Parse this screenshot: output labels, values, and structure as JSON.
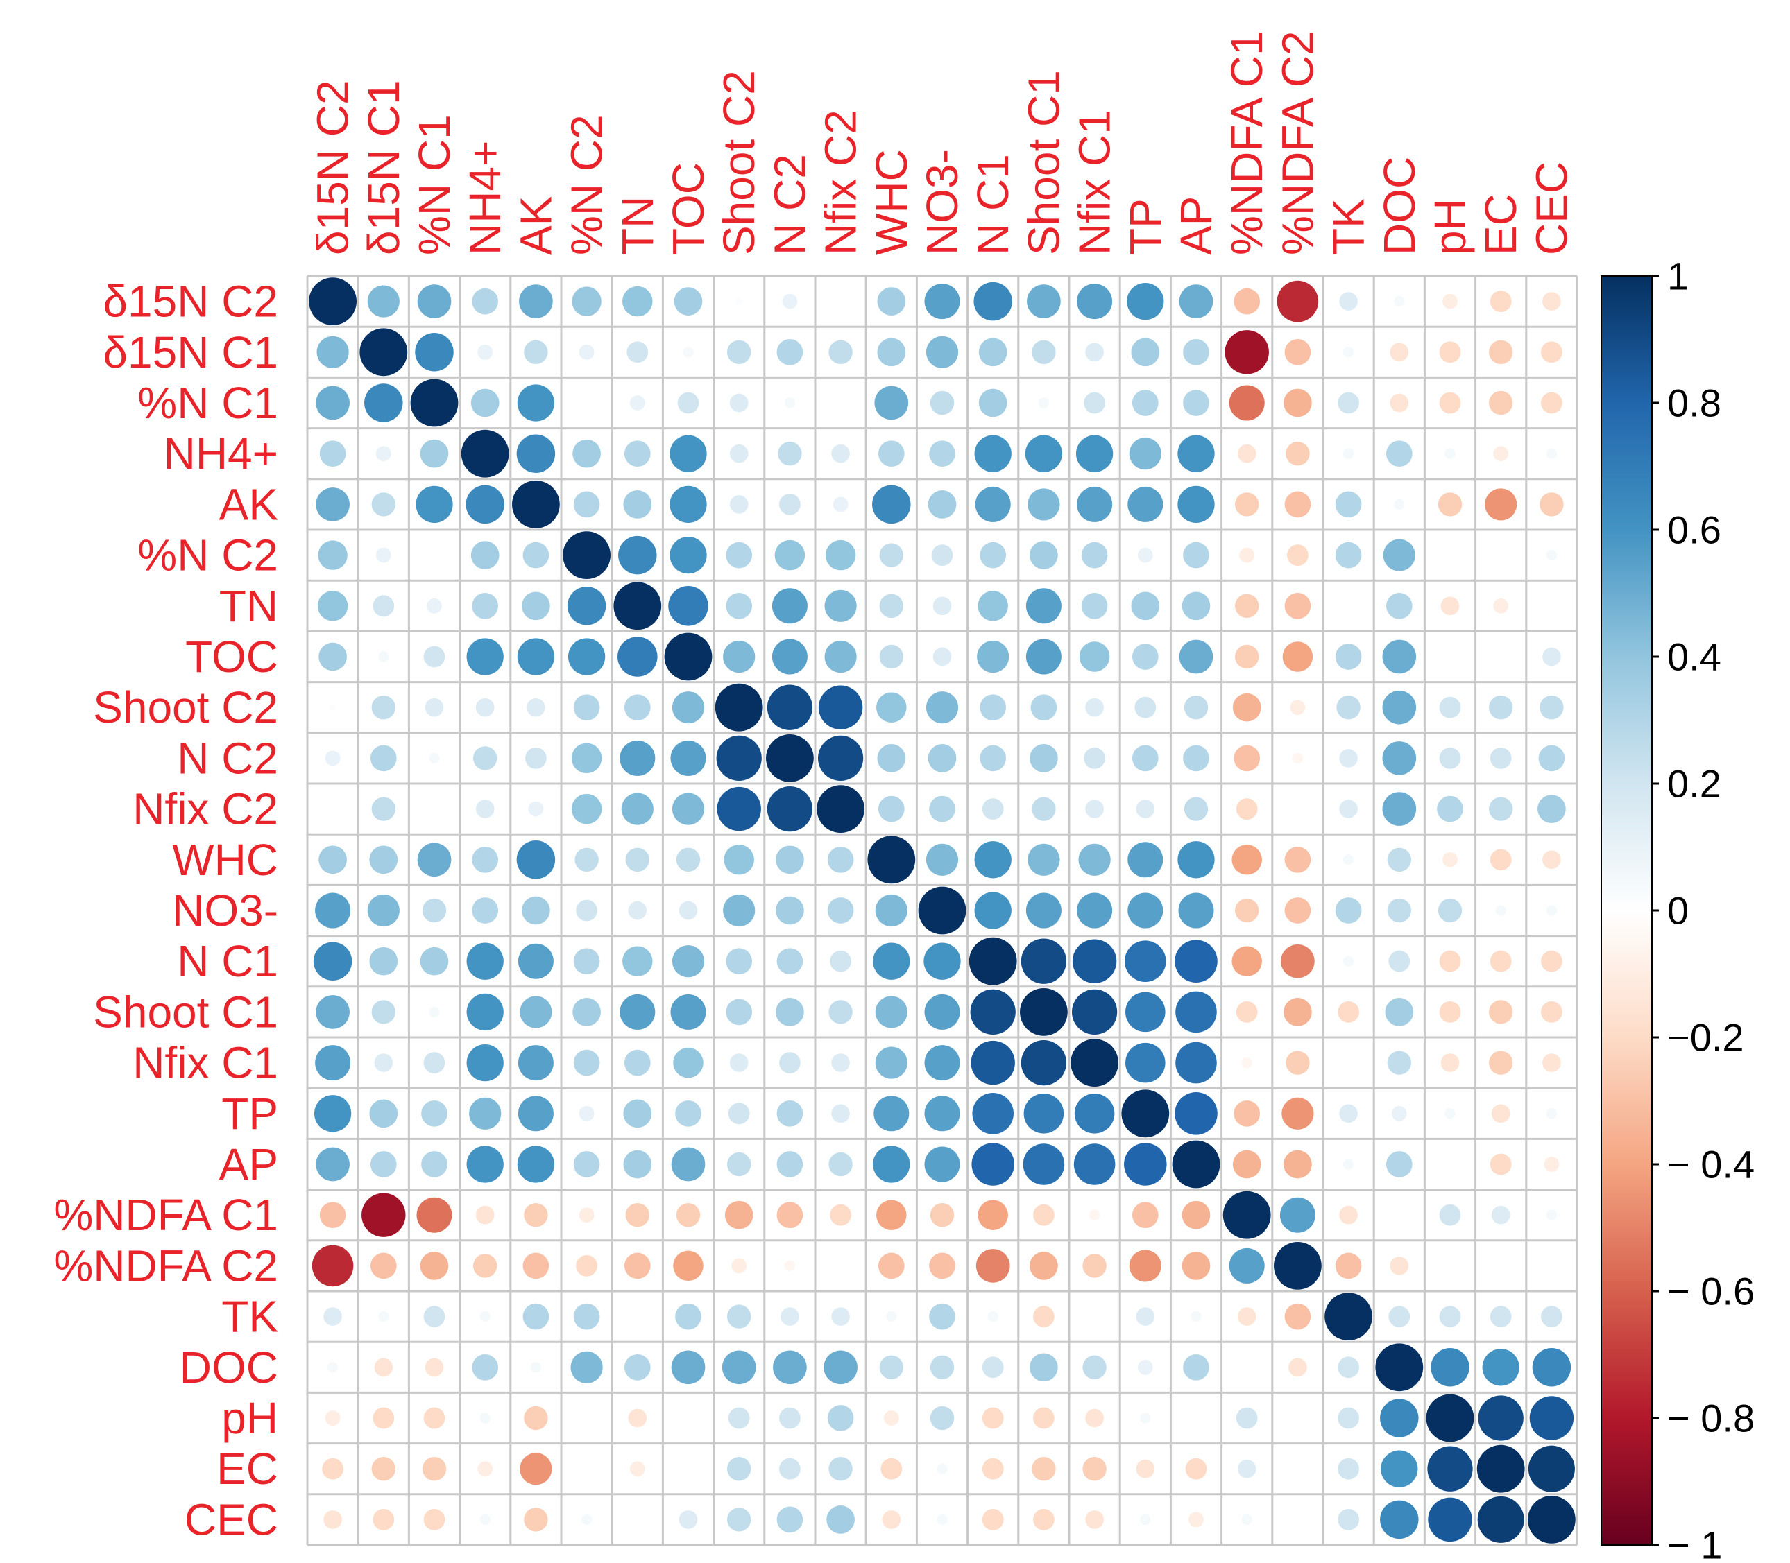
{
  "chart_data": {
    "type": "heatmap",
    "subtype": "correlation-circle-matrix",
    "variables": [
      "δ15N C2",
      "δ15N C1",
      "%N C1",
      "NH4+",
      "AK",
      "%N C2",
      "TN",
      "TOC",
      "Shoot C2",
      "N C2",
      "Nfix C2",
      "WHC",
      "NO3-",
      "N C1",
      "Shoot C1",
      "Nfix C1",
      "TP",
      "AP",
      "%NDFA C1",
      "%NDFA C2",
      "TK",
      "DOC",
      "pH",
      "EC",
      "CEC"
    ],
    "matrix": [
      [
        1,
        0.45,
        0.5,
        0.3,
        0.5,
        0.38,
        0.4,
        0.35,
        0.02,
        0.1,
        0,
        0.35,
        0.55,
        0.65,
        0.5,
        0.55,
        0.6,
        0.5,
        -0.3,
        -0.75,
        0.15,
        0.05,
        -0.1,
        -0.2,
        -0.15
      ],
      [
        0.45,
        1,
        0.65,
        0.1,
        0.25,
        0.1,
        0.2,
        0.05,
        0.25,
        0.3,
        0.25,
        0.35,
        0.45,
        0.35,
        0.25,
        0.15,
        0.35,
        0.3,
        -0.85,
        -0.3,
        0.05,
        -0.15,
        -0.2,
        -0.25,
        -0.2
      ],
      [
        0.5,
        0.65,
        1,
        0.35,
        0.6,
        0,
        0.1,
        0.2,
        0.15,
        0.05,
        0,
        0.5,
        0.25,
        0.35,
        0.05,
        0.2,
        0.3,
        0.3,
        -0.55,
        -0.35,
        0.2,
        -0.15,
        -0.2,
        -0.25,
        -0.2
      ],
      [
        0.3,
        0.1,
        0.35,
        1,
        0.65,
        0.35,
        0.3,
        0.6,
        0.15,
        0.25,
        0.15,
        0.3,
        0.3,
        0.6,
        0.6,
        0.6,
        0.45,
        0.6,
        -0.15,
        -0.25,
        0.05,
        0.3,
        0.05,
        -0.1,
        0.05
      ],
      [
        0.5,
        0.25,
        0.6,
        0.65,
        1,
        0.3,
        0.35,
        0.6,
        0.15,
        0.2,
        0.1,
        0.65,
        0.35,
        0.55,
        0.45,
        0.55,
        0.55,
        0.6,
        -0.25,
        -0.3,
        0.3,
        0.05,
        -0.25,
        -0.45,
        -0.25
      ],
      [
        0.38,
        0.1,
        0,
        0.35,
        0.3,
        1,
        0.65,
        0.6,
        0.3,
        0.4,
        0.4,
        0.25,
        0.2,
        0.3,
        0.35,
        0.3,
        0.1,
        0.3,
        -0.1,
        -0.2,
        0.3,
        0.45,
        0,
        0,
        0.05
      ],
      [
        0.4,
        0.2,
        0.1,
        0.3,
        0.35,
        0.65,
        1,
        0.7,
        0.3,
        0.55,
        0.45,
        0.25,
        0.15,
        0.4,
        0.55,
        0.3,
        0.35,
        0.35,
        -0.25,
        -0.3,
        0,
        0.3,
        -0.15,
        -0.1,
        0
      ],
      [
        0.35,
        0.05,
        0.2,
        0.6,
        0.6,
        0.6,
        0.7,
        1,
        0.45,
        0.55,
        0.45,
        0.25,
        0.15,
        0.45,
        0.55,
        0.4,
        0.3,
        0.5,
        -0.25,
        -0.4,
        0.3,
        0.5,
        0,
        0,
        0.15
      ],
      [
        0.02,
        0.25,
        0.15,
        0.15,
        0.15,
        0.3,
        0.3,
        0.45,
        1,
        0.9,
        0.85,
        0.4,
        0.45,
        0.3,
        0.3,
        0.15,
        0.2,
        0.25,
        -0.35,
        -0.1,
        0.25,
        0.5,
        0.2,
        0.25,
        0.25
      ],
      [
        0.1,
        0.3,
        0.05,
        0.25,
        0.2,
        0.4,
        0.55,
        0.55,
        0.9,
        1,
        0.9,
        0.35,
        0.35,
        0.3,
        0.35,
        0.2,
        0.3,
        0.3,
        -0.3,
        -0.05,
        0.15,
        0.5,
        0.2,
        0.2,
        0.3
      ],
      [
        0,
        0.25,
        0,
        0.15,
        0.1,
        0.4,
        0.45,
        0.45,
        0.85,
        0.9,
        1,
        0.3,
        0.3,
        0.2,
        0.25,
        0.15,
        0.15,
        0.25,
        -0.2,
        0,
        0.15,
        0.5,
        0.3,
        0.25,
        0.35
      ],
      [
        0.35,
        0.35,
        0.5,
        0.3,
        0.65,
        0.25,
        0.25,
        0.25,
        0.4,
        0.35,
        0.3,
        1,
        0.45,
        0.6,
        0.45,
        0.45,
        0.55,
        0.6,
        -0.4,
        -0.3,
        0.05,
        0.25,
        -0.1,
        -0.2,
        -0.15
      ],
      [
        0.55,
        0.45,
        0.25,
        0.3,
        0.35,
        0.2,
        0.15,
        0.15,
        0.45,
        0.35,
        0.3,
        0.45,
        1,
        0.6,
        0.55,
        0.55,
        0.55,
        0.55,
        -0.25,
        -0.3,
        0.3,
        0.25,
        0.25,
        0.05,
        0.05
      ],
      [
        0.65,
        0.35,
        0.35,
        0.6,
        0.55,
        0.3,
        0.4,
        0.45,
        0.3,
        0.3,
        0.2,
        0.6,
        0.6,
        1,
        0.9,
        0.85,
        0.75,
        0.8,
        -0.4,
        -0.5,
        0.05,
        0.2,
        -0.2,
        -0.2,
        -0.2
      ],
      [
        0.5,
        0.25,
        0.05,
        0.6,
        0.45,
        0.35,
        0.55,
        0.55,
        0.3,
        0.35,
        0.25,
        0.45,
        0.55,
        0.9,
        1,
        0.9,
        0.7,
        0.75,
        -0.2,
        -0.35,
        -0.2,
        0.35,
        -0.2,
        -0.25,
        -0.2
      ],
      [
        0.55,
        0.15,
        0.2,
        0.6,
        0.55,
        0.3,
        0.3,
        0.4,
        0.15,
        0.2,
        0.15,
        0.45,
        0.55,
        0.85,
        0.9,
        1,
        0.7,
        0.75,
        -0.05,
        -0.25,
        0,
        0.25,
        -0.15,
        -0.25,
        -0.15
      ],
      [
        0.6,
        0.35,
        0.3,
        0.45,
        0.55,
        0.1,
        0.35,
        0.3,
        0.2,
        0.3,
        0.15,
        0.55,
        0.55,
        0.75,
        0.7,
        0.7,
        1,
        0.8,
        -0.3,
        -0.45,
        0.15,
        0.1,
        0.05,
        -0.15,
        0.05
      ],
      [
        0.5,
        0.3,
        0.3,
        0.6,
        0.6,
        0.3,
        0.35,
        0.5,
        0.25,
        0.3,
        0.25,
        0.6,
        0.55,
        0.8,
        0.75,
        0.75,
        0.8,
        1,
        -0.35,
        -0.35,
        0.05,
        0.3,
        0,
        -0.2,
        -0.1
      ],
      [
        -0.3,
        -0.85,
        -0.55,
        -0.15,
        -0.25,
        -0.1,
        -0.25,
        -0.25,
        -0.35,
        -0.3,
        -0.2,
        -0.4,
        -0.25,
        -0.4,
        -0.2,
        -0.05,
        -0.3,
        -0.35,
        1,
        0.55,
        -0.15,
        0,
        0.2,
        0.15,
        0.05
      ],
      [
        -0.75,
        -0.3,
        -0.35,
        -0.25,
        -0.3,
        -0.2,
        -0.3,
        -0.4,
        -0.1,
        -0.05,
        0,
        -0.3,
        -0.3,
        -0.5,
        -0.35,
        -0.25,
        -0.45,
        -0.35,
        0.55,
        1,
        -0.3,
        -0.15,
        0,
        0,
        0
      ],
      [
        0.15,
        0.05,
        0.2,
        0.05,
        0.3,
        0.3,
        0,
        0.3,
        0.25,
        0.15,
        0.15,
        0.05,
        0.3,
        0.05,
        -0.2,
        0,
        0.15,
        0.05,
        -0.15,
        -0.3,
        1,
        0.2,
        0.2,
        0.2,
        0.2
      ],
      [
        0.05,
        -0.15,
        -0.15,
        0.3,
        0.05,
        0.45,
        0.3,
        0.5,
        0.5,
        0.5,
        0.5,
        0.25,
        0.25,
        0.2,
        0.35,
        0.25,
        0.1,
        0.3,
        0,
        -0.15,
        0.2,
        1,
        0.65,
        0.6,
        0.65
      ],
      [
        -0.1,
        -0.2,
        -0.2,
        0.05,
        -0.25,
        0,
        -0.15,
        0,
        0.2,
        0.2,
        0.3,
        -0.1,
        0.25,
        -0.2,
        -0.2,
        -0.15,
        0.05,
        0,
        0.2,
        0,
        0.2,
        0.65,
        1,
        0.9,
        0.85
      ],
      [
        -0.2,
        -0.25,
        -0.25,
        -0.1,
        -0.45,
        0,
        -0.1,
        0,
        0.25,
        0.2,
        0.25,
        -0.2,
        0.05,
        -0.2,
        -0.25,
        -0.25,
        -0.15,
        -0.2,
        0.15,
        0,
        0.2,
        0.6,
        0.9,
        1,
        0.95
      ],
      [
        -0.15,
        -0.2,
        -0.2,
        0.05,
        -0.25,
        0.05,
        0,
        0.15,
        0.25,
        0.3,
        0.35,
        -0.15,
        0.05,
        -0.2,
        -0.2,
        -0.15,
        0.05,
        -0.1,
        0.05,
        0,
        0.2,
        0.65,
        0.85,
        0.95,
        1
      ]
    ],
    "colorbar": {
      "range": [
        -1,
        1
      ],
      "tick_labels": [
        "1",
        "0.8",
        "0.6",
        "0.4",
        "0.2",
        "0",
        "−0.2",
        "− 0.4",
        "− 0.6",
        "− 0.8",
        "− 1"
      ],
      "tick_values": [
        1,
        0.8,
        0.6,
        0.4,
        0.2,
        0,
        -0.2,
        -0.4,
        -0.6,
        -0.8,
        -1
      ]
    },
    "palette": [
      "#67001f",
      "#b2182b",
      "#d6604d",
      "#f4a582",
      "#fddbc7",
      "#ffffff",
      "#d1e5f0",
      "#92c5de",
      "#4393c3",
      "#2166ac",
      "#053061"
    ],
    "label_color": "#e8232a",
    "grid_color": "#c8c8c8"
  }
}
